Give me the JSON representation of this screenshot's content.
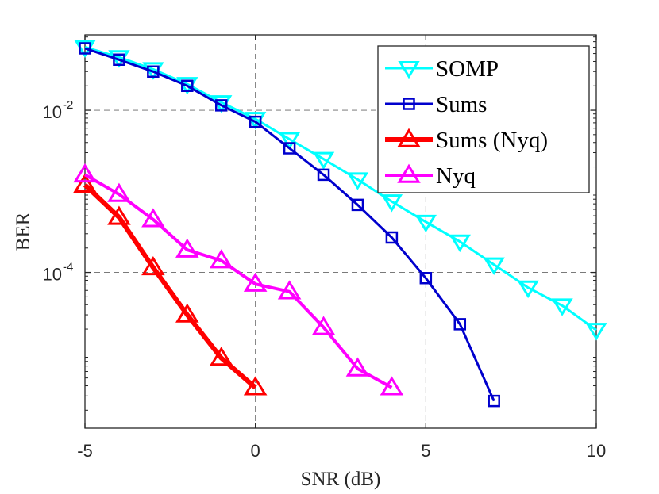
{
  "chart_data": {
    "type": "line",
    "title": "",
    "xlabel": "SNR (dB)",
    "ylabel": "BER",
    "xlim": [
      -5,
      10
    ],
    "ylim": [
      1.2e-06,
      0.085
    ],
    "yscale": "log",
    "grid": "dashed",
    "legend_position": "top-right",
    "x_ticks": [
      {
        "value": -5,
        "label": "-5"
      },
      {
        "value": 0,
        "label": "0"
      },
      {
        "value": 5,
        "label": "5"
      },
      {
        "value": 10,
        "label": "10"
      }
    ],
    "y_ticks": [
      {
        "value": 0.01,
        "base": "10",
        "exp": "-2"
      },
      {
        "value": 0.0001,
        "base": "10",
        "exp": "-4"
      }
    ],
    "series": [
      {
        "name": "SOMP",
        "color": "#00FFFF",
        "marker": "triangle-down",
        "line_width": 3,
        "x": [
          -5,
          -4,
          -3,
          -2,
          -1,
          0,
          1,
          2,
          3,
          4,
          5,
          6,
          7,
          8,
          9,
          10
        ],
        "values": [
          0.06,
          0.045,
          0.032,
          0.021,
          0.0125,
          0.0078,
          0.0044,
          0.0025,
          0.0014,
          0.00075,
          0.00042,
          0.00024,
          0.000125,
          6.5e-05,
          3.9e-05,
          1.95e-05
        ]
      },
      {
        "name": "Sums",
        "color": "#0000CD",
        "marker": "square",
        "line_width": 3,
        "x": [
          -5,
          -4,
          -3,
          -2,
          -1,
          0,
          1,
          2,
          3,
          4,
          5,
          6,
          7
        ],
        "values": [
          0.058,
          0.042,
          0.03,
          0.02,
          0.0115,
          0.0072,
          0.0034,
          0.0016,
          0.00068,
          0.00027,
          8.5e-05,
          2.3e-05,
          2.6e-06
        ]
      },
      {
        "name": "Sums (Nyq)",
        "color": "#FF0000",
        "marker": "triangle-up",
        "line_width": 6,
        "x": [
          -5,
          -4,
          -3,
          -2,
          -1,
          0
        ],
        "values": [
          0.0012,
          0.00048,
          0.000115,
          3e-05,
          8.8e-06,
          3.8e-06
        ]
      },
      {
        "name": "Nyq",
        "color": "#FF00FF",
        "marker": "triangle-up",
        "line_width": 4,
        "x": [
          -5,
          -4,
          -3,
          -2,
          -1,
          0,
          1,
          2,
          3,
          4
        ],
        "values": [
          0.0016,
          0.00092,
          0.00045,
          0.00019,
          0.00014,
          7.2e-05,
          5.8e-05,
          2.1e-05,
          6.5e-06,
          3.8e-06
        ]
      }
    ]
  }
}
